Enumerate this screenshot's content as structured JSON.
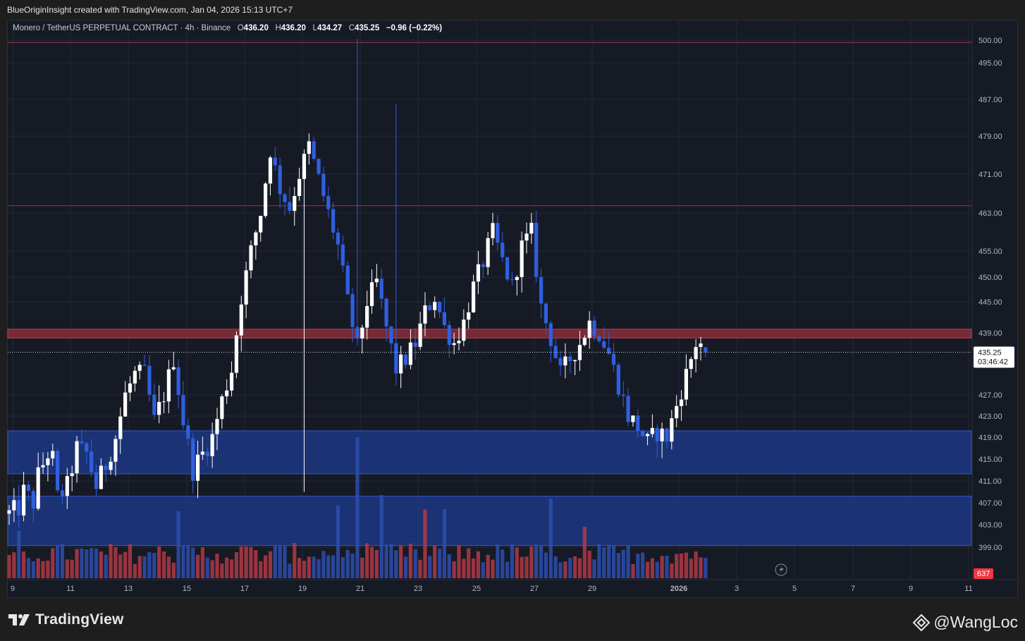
{
  "header": {
    "author_line": "BlueOriginInsight created with TradingView.com, Jan 04, 2026 15:13 UTC+7"
  },
  "legend": {
    "symbol": "Monero / TetherUS PERPETUAL CONTRACT · 4h · Binance",
    "o_label": "O",
    "o": "436.20",
    "h_label": "H",
    "h": "436.20",
    "l_label": "L",
    "l": "434.27",
    "c_label": "C",
    "c": "435.25",
    "change": "−0.96 (−0.22%)"
  },
  "price_badge": {
    "price": "435.25",
    "countdown": "03:46:42"
  },
  "volume_badge": "637",
  "branding": {
    "tv": "TradingView",
    "watermark": "@WangLoc"
  },
  "colors": {
    "background": "#161a25",
    "bull_candle": "#ffffff",
    "bear_candle": "#2f5fe0",
    "vol_bull": "#b13a45",
    "vol_bear": "#2d4fb0",
    "resistance_line": "#9b3440",
    "red_zone": "#8a2d3a",
    "blue_zone": "#1d3b8f"
  },
  "chart_data": {
    "type": "candlestick",
    "title": "Monero / TetherUS PERPETUAL CONTRACT · 4h · Binance",
    "y_ticks": [
      "500.00",
      "495.00",
      "487.00",
      "479.00",
      "471.00",
      "463.00",
      "455.00",
      "450.00",
      "445.00",
      "439.00",
      "427.00",
      "423.00",
      "419.00",
      "415.00",
      "411.00",
      "407.00",
      "403.00",
      "399.00"
    ],
    "x_ticks": [
      "9",
      "11",
      "13",
      "15",
      "17",
      "19",
      "21",
      "23",
      "25",
      "27",
      "29",
      "2026",
      "3",
      "5",
      "7",
      "9",
      "11"
    ],
    "current_price": 435.25,
    "levels": {
      "lines": [
        499.5,
        464.5
      ],
      "red_zone": [
        438.0,
        439.7
      ],
      "blue_zones": [
        [
          412.3,
          420.2
        ],
        [
          399.3,
          408.2
        ]
      ]
    },
    "close_path": [
      [
        0,
        405
      ],
      [
        2,
        406
      ],
      [
        3,
        409
      ],
      [
        5,
        407
      ],
      [
        6,
        412
      ],
      [
        8,
        416
      ],
      [
        9,
        415
      ],
      [
        10,
        408
      ],
      [
        12,
        410
      ],
      [
        14,
        417
      ],
      [
        16,
        416
      ],
      [
        18,
        410
      ],
      [
        20,
        414
      ],
      [
        22,
        419
      ],
      [
        24,
        427
      ],
      [
        26,
        431
      ],
      [
        28,
        431
      ],
      [
        30,
        422
      ],
      [
        32,
        427
      ],
      [
        34,
        434
      ],
      [
        36,
        422
      ],
      [
        38,
        413
      ],
      [
        40,
        416
      ],
      [
        42,
        419
      ],
      [
        44,
        426
      ],
      [
        46,
        432
      ],
      [
        48,
        446
      ],
      [
        50,
        455
      ],
      [
        52,
        463
      ],
      [
        54,
        476
      ],
      [
        56,
        468
      ],
      [
        58,
        464
      ],
      [
        60,
        471
      ],
      [
        62,
        477
      ],
      [
        64,
        470
      ],
      [
        66,
        463
      ],
      [
        68,
        456
      ],
      [
        70,
        445
      ],
      [
        72,
        436
      ],
      [
        74,
        445
      ],
      [
        76,
        449
      ],
      [
        78,
        440
      ],
      [
        80,
        432
      ],
      [
        82,
        434
      ],
      [
        84,
        437
      ],
      [
        86,
        443
      ],
      [
        88,
        446
      ],
      [
        90,
        440
      ],
      [
        92,
        437
      ],
      [
        94,
        441
      ],
      [
        96,
        448
      ],
      [
        98,
        453
      ],
      [
        100,
        459
      ],
      [
        102,
        453
      ],
      [
        104,
        448
      ],
      [
        106,
        456
      ],
      [
        108,
        459
      ],
      [
        110,
        444
      ],
      [
        112,
        438
      ],
      [
        114,
        431
      ],
      [
        116,
        434
      ],
      [
        118,
        437
      ],
      [
        120,
        441
      ],
      [
        122,
        439
      ],
      [
        124,
        435
      ],
      [
        126,
        429
      ],
      [
        128,
        423
      ],
      [
        130,
        421
      ],
      [
        132,
        418
      ],
      [
        134,
        420
      ],
      [
        136,
        419
      ],
      [
        138,
        425
      ],
      [
        140,
        431
      ],
      [
        142,
        437
      ],
      [
        144,
        437
      ]
    ],
    "candles_note": "4h candles, x index = bar number from Dec 9"
  }
}
